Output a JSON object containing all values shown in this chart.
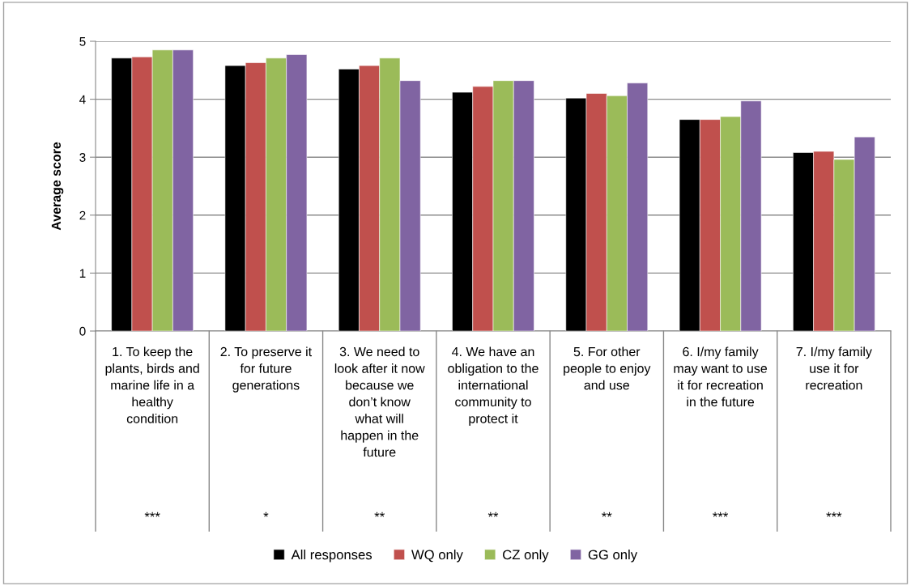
{
  "chart_data": {
    "type": "bar",
    "ylabel": "Average score",
    "categories": [
      "1. To keep the\nplants, birds and\nmarine life in a\nhealthy\ncondition",
      "2. To preserve it\nfor future\ngenerations",
      "3. We need to\nlook after it now\nbecause we\ndon’t know\nwhat will\nhappen in the\nfuture",
      "4. We have an\nobligation to the\ninternational\ncommunity to\nprotect it",
      "5. For other\npeople to enjoy\nand use",
      "6. I/my family\nmay want to use\nit for recreation\nin the future",
      "7. I/my family\nuse it for\nrecreation"
    ],
    "series": [
      {
        "name": "All responses",
        "color": "#000000",
        "values": [
          4.71,
          4.58,
          4.52,
          4.12,
          4.02,
          3.65,
          3.08
        ]
      },
      {
        "name": "WQ only",
        "color": "#c0504d",
        "values": [
          4.73,
          4.63,
          4.58,
          4.22,
          4.1,
          3.65,
          3.1
        ]
      },
      {
        "name": "CZ only",
        "color": "#9bbb59",
        "values": [
          4.85,
          4.71,
          4.71,
          4.32,
          4.06,
          3.7,
          2.96
        ]
      },
      {
        "name": "GG only",
        "color": "#8064a2",
        "values": [
          4.85,
          4.77,
          4.32,
          4.32,
          4.28,
          3.97,
          3.35
        ]
      }
    ],
    "annotations": [
      "***",
      "*",
      "**",
      "**",
      "**",
      "***",
      "***"
    ],
    "ylim": [
      0,
      5
    ],
    "yticks": [
      0,
      1,
      2,
      3,
      4,
      5
    ],
    "grid": "y",
    "legend": "bottom"
  }
}
